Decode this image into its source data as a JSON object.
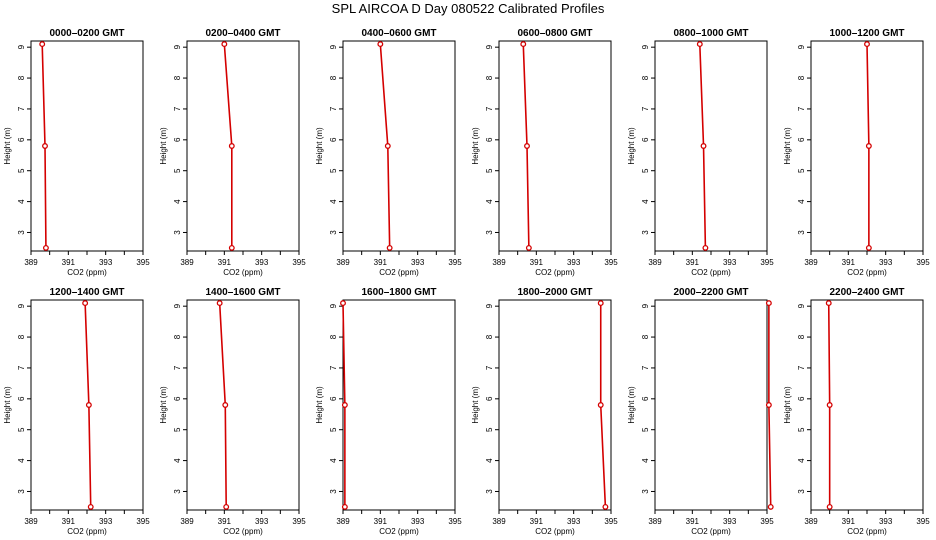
{
  "title": "SPL AIRCOA D  Day 080522  Calibrated Profiles",
  "chart_data": {
    "type": "line",
    "xlabel": "CO2 (ppm)",
    "ylabel": "Height (m)",
    "xlim": [
      389,
      395
    ],
    "ylim": [
      2.4,
      9.2
    ],
    "x_ticks": [
      "389",
      "391",
      "393",
      "395"
    ],
    "y_ticks": [
      "3",
      "4",
      "5",
      "6",
      "7",
      "8",
      "9"
    ],
    "heights": [
      2.5,
      5.8,
      9.1
    ],
    "line_color": "#d40000",
    "panels": [
      {
        "title": "0000–0200 GMT",
        "co2": [
          389.8,
          389.75,
          389.6
        ]
      },
      {
        "title": "0200–0400 GMT",
        "co2": [
          391.4,
          391.4,
          391.0
        ]
      },
      {
        "title": "0400–0600 GMT",
        "co2": [
          391.5,
          391.4,
          391.0
        ]
      },
      {
        "title": "0600–0800 GMT",
        "co2": [
          390.6,
          390.5,
          390.3
        ]
      },
      {
        "title": "0800–1000 GMT",
        "co2": [
          391.7,
          391.6,
          391.4
        ]
      },
      {
        "title": "1000–1200 GMT",
        "co2": [
          392.1,
          392.1,
          392.0
        ]
      },
      {
        "title": "1200–1400 GMT",
        "co2": [
          392.2,
          392.1,
          391.9
        ]
      },
      {
        "title": "1400–1600 GMT",
        "co2": [
          391.1,
          391.05,
          390.75
        ]
      },
      {
        "title": "1600–1800 GMT",
        "co2": [
          389.1,
          389.1,
          389.0
        ]
      },
      {
        "title": "1800–2000 GMT",
        "co2": [
          394.7,
          394.45,
          394.45
        ]
      },
      {
        "title": "2000–2200 GMT",
        "co2": [
          395.2,
          395.1,
          395.1
        ]
      },
      {
        "title": "2200–2400 GMT",
        "co2": [
          390.0,
          390.0,
          389.95
        ]
      }
    ]
  }
}
